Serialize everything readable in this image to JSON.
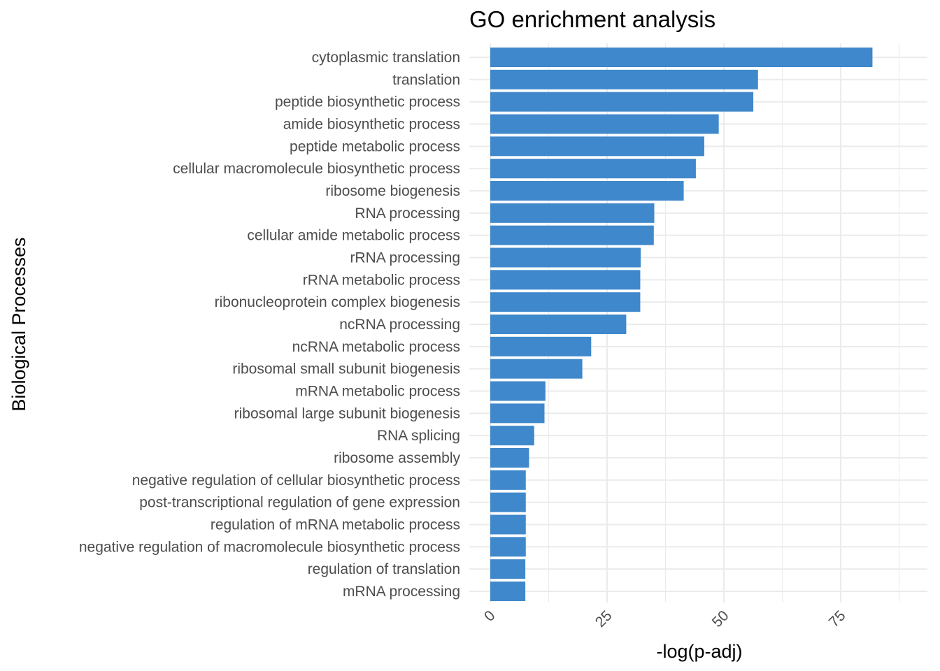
{
  "chart_data": {
    "type": "bar",
    "orientation": "horizontal",
    "title": "GO enrichment analysis",
    "xlabel": "-log(p-adj)",
    "ylabel": "Biological Processes",
    "xlim": [
      0,
      90
    ],
    "x_ticks": [
      0,
      25,
      50,
      75
    ],
    "grid": true,
    "bar_color": "#3F88CB",
    "categories": [
      "cytoplasmic translation",
      "translation",
      "peptide biosynthetic process",
      "amide biosynthetic process",
      "peptide metabolic process",
      "cellular macromolecule biosynthetic process",
      "ribosome biogenesis",
      "RNA processing",
      "cellular amide metabolic process",
      "rRNA processing",
      "rRNA metabolic process",
      "ribonucleoprotein complex biogenesis",
      "ncRNA processing",
      "ncRNA metabolic process",
      "ribosomal small subunit biogenesis",
      "mRNA metabolic process",
      "ribosomal large subunit biogenesis",
      "RNA splicing",
      "ribosome assembly",
      "negative regulation of cellular biosynthetic process",
      "post-transcriptional regulation of gene expression",
      "regulation of mRNA metabolic process",
      "negative regulation of macromolecule biosynthetic process",
      "regulation of translation",
      "mRNA processing"
    ],
    "values": [
      81.8,
      57.3,
      56.3,
      48.9,
      45.8,
      44.0,
      41.4,
      35.1,
      35.0,
      32.2,
      32.1,
      32.1,
      29.1,
      21.6,
      19.7,
      11.8,
      11.6,
      9.4,
      8.3,
      7.6,
      7.6,
      7.6,
      7.6,
      7.5,
      7.5
    ]
  }
}
